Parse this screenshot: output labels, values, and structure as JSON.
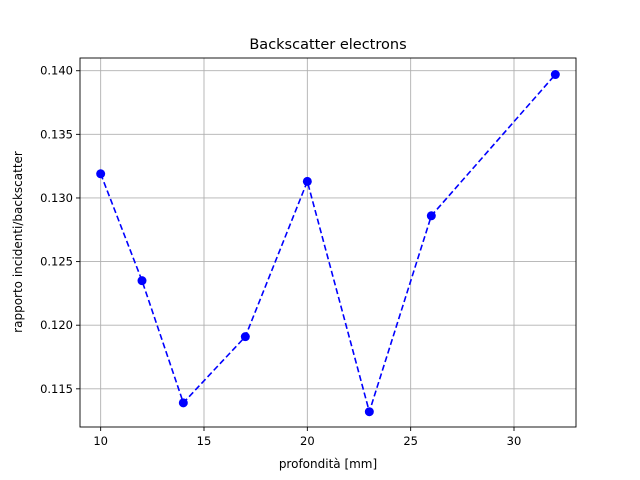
{
  "chart_data": {
    "type": "line",
    "title": "Backscatter electrons",
    "xlabel": "profondità [mm]",
    "ylabel": "rapporto incidenti/backscatter",
    "xlim": [
      9,
      33
    ],
    "ylim": [
      0.112,
      0.141
    ],
    "xticks": [
      10,
      15,
      20,
      25,
      30
    ],
    "yticks": [
      0.115,
      0.12,
      0.125,
      0.13,
      0.135,
      0.14
    ],
    "yticks_labels": [
      "0.115",
      "0.120",
      "0.125",
      "0.130",
      "0.135",
      "0.140"
    ],
    "grid": true,
    "series": [
      {
        "x": [
          10,
          12,
          14,
          17,
          20,
          23,
          26,
          32
        ],
        "y": [
          0.1319,
          0.1235,
          0.1139,
          0.1191,
          0.1313,
          0.1132,
          0.1286,
          0.1397
        ],
        "color": "#0000ff",
        "line_style": "dashed",
        "marker": "circle"
      }
    ]
  }
}
